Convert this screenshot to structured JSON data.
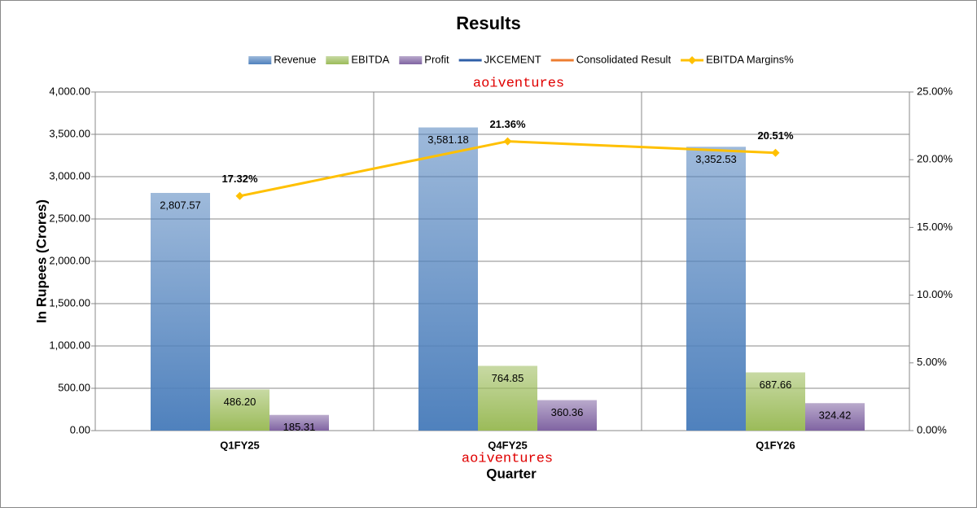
{
  "chart_data": {
    "type": "bar",
    "title": "Results",
    "x_label": "Quarter",
    "y_label": "In Rupees (Crores)",
    "annotations": [
      "aoiventures",
      "aoiventures"
    ],
    "categories": [
      "Q1FY25",
      "Q4FY25",
      "Q1FY26"
    ],
    "series": [
      {
        "name": "Revenue",
        "type": "bar",
        "color": "#4f81bd",
        "values": [
          2807.57,
          3581.18,
          3352.53
        ],
        "value_labels": [
          "2,807.57",
          "3,581.18",
          "3,352.53"
        ]
      },
      {
        "name": "EBITDA",
        "type": "bar",
        "color": "#9bbb59",
        "values": [
          486.2,
          764.85,
          687.66
        ],
        "value_labels": [
          "486.20",
          "764.85",
          "687.66"
        ]
      },
      {
        "name": "Profit",
        "type": "bar",
        "color": "#8064a2",
        "values": [
          185.31,
          360.36,
          324.42
        ],
        "value_labels": [
          "185.31",
          "360.36",
          "324.42"
        ]
      },
      {
        "name": "JKCEMENT",
        "type": "line",
        "color": "#2f5fa8",
        "values": [
          null,
          null,
          null
        ]
      },
      {
        "name": "Consolidated Result",
        "type": "line",
        "color": "#ed7d31",
        "values": [
          null,
          null,
          null
        ]
      },
      {
        "name": "EBITDA Margins%",
        "type": "line",
        "axis": "y2",
        "color": "#ffc000",
        "values": [
          17.32,
          21.36,
          20.51
        ],
        "value_labels": [
          "17.32%",
          "21.36%",
          "20.51%"
        ]
      }
    ],
    "ylim": [
      0,
      4000
    ],
    "yticks": [
      {
        "value": 0,
        "label": "0.00"
      },
      {
        "value": 500,
        "label": "500.00"
      },
      {
        "value": 1000,
        "label": "1,000.00"
      },
      {
        "value": 1500,
        "label": "1,500.00"
      },
      {
        "value": 2000,
        "label": "2,000.00"
      },
      {
        "value": 2500,
        "label": "2,500.00"
      },
      {
        "value": 3000,
        "label": "3,000.00"
      },
      {
        "value": 3500,
        "label": "3,500.00"
      },
      {
        "value": 4000,
        "label": "4,000.00"
      }
    ],
    "y2lim": [
      0,
      25
    ],
    "y2ticks": [
      {
        "value": 0,
        "label": "0.00%"
      },
      {
        "value": 5,
        "label": "5.00%"
      },
      {
        "value": 10,
        "label": "10.00%"
      },
      {
        "value": 15,
        "label": "15.00%"
      },
      {
        "value": 20,
        "label": "20.00%"
      },
      {
        "value": 25,
        "label": "25.00%"
      }
    ],
    "grid": true
  }
}
